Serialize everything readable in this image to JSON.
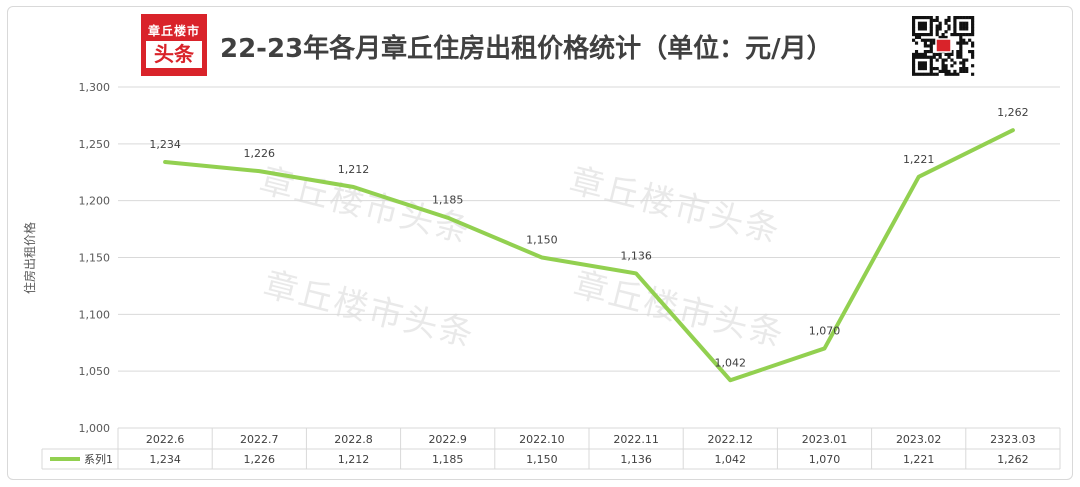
{
  "logo": {
    "line1": "章丘楼市",
    "line2": "头条"
  },
  "title": "22-23年各月章丘住房出租价格统计（单位：元/月）",
  "watermark": "章丘楼市头条",
  "chart_data": {
    "type": "line",
    "title": "22-23年各月章丘住房出租价格统计（单位：元/月）",
    "ylabel": "住房出租价格",
    "xlabel": "",
    "categories": [
      "2022.6",
      "2022.7",
      "2022.8",
      "2022.9",
      "2022.10",
      "2022.11",
      "2022.12",
      "2023.01",
      "2023.02",
      "2323.03"
    ],
    "series": [
      {
        "name": "系列1",
        "values": [
          1234,
          1226,
          1212,
          1185,
          1150,
          1136,
          1042,
          1070,
          1221,
          1262
        ],
        "color": "#92d050"
      }
    ],
    "ylim": [
      1000,
      1300
    ],
    "yticks": [
      1000,
      1050,
      1100,
      1150,
      1200,
      1250,
      1300
    ],
    "grid": true,
    "legend": "data-table-left",
    "data_table": true
  },
  "colors": {
    "line": "#92d050",
    "logo": "#d9232a",
    "grid": "#d9d9d9",
    "text": "#404040"
  }
}
